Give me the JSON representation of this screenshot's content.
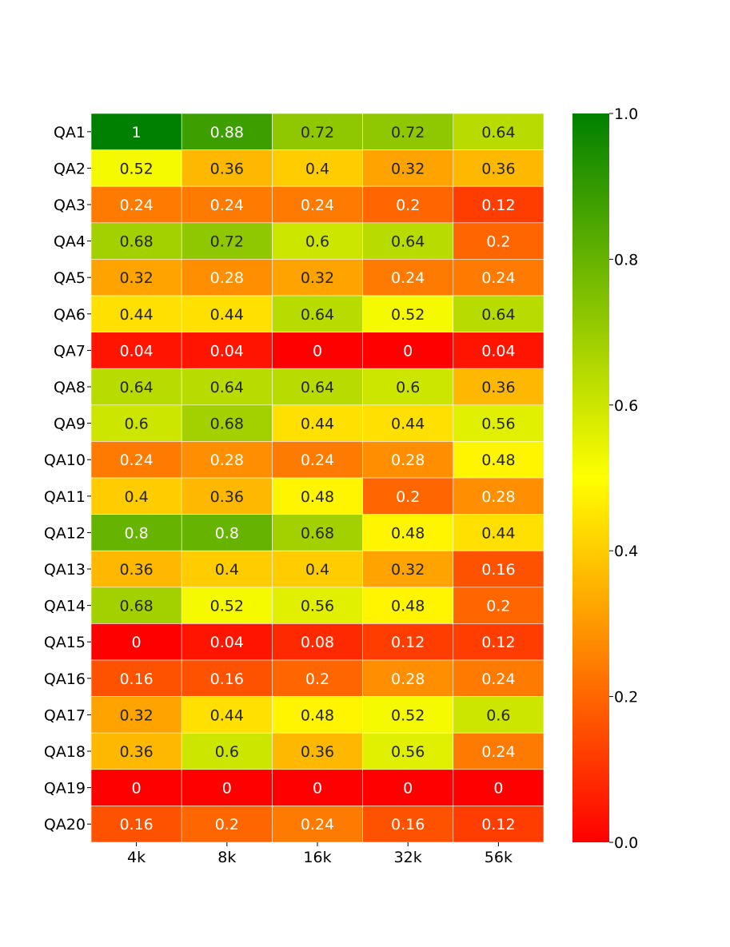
{
  "chart_data": {
    "type": "heatmap",
    "title": "",
    "xlabel": "",
    "ylabel": "",
    "x_categories": [
      "4k",
      "8k",
      "16k",
      "32k",
      "56k"
    ],
    "y_categories": [
      "QA1",
      "QA2",
      "QA3",
      "QA4",
      "QA5",
      "QA6",
      "QA7",
      "QA8",
      "QA9",
      "QA10",
      "QA11",
      "QA12",
      "QA13",
      "QA14",
      "QA15",
      "QA16",
      "QA17",
      "QA18",
      "QA19",
      "QA20"
    ],
    "values": [
      [
        1,
        0.88,
        0.72,
        0.72,
        0.64
      ],
      [
        0.52,
        0.36,
        0.4,
        0.32,
        0.36
      ],
      [
        0.24,
        0.24,
        0.24,
        0.2,
        0.12
      ],
      [
        0.68,
        0.72,
        0.6,
        0.64,
        0.2
      ],
      [
        0.32,
        0.28,
        0.32,
        0.24,
        0.24
      ],
      [
        0.44,
        0.44,
        0.64,
        0.52,
        0.64
      ],
      [
        0.04,
        0.04,
        0,
        0,
        0.04
      ],
      [
        0.64,
        0.64,
        0.64,
        0.6,
        0.36
      ],
      [
        0.6,
        0.68,
        0.44,
        0.44,
        0.56
      ],
      [
        0.24,
        0.28,
        0.24,
        0.28,
        0.48
      ],
      [
        0.4,
        0.36,
        0.48,
        0.2,
        0.28
      ],
      [
        0.8,
        0.8,
        0.68,
        0.48,
        0.44
      ],
      [
        0.36,
        0.4,
        0.4,
        0.32,
        0.16
      ],
      [
        0.68,
        0.52,
        0.56,
        0.48,
        0.2
      ],
      [
        0,
        0.04,
        0.08,
        0.12,
        0.12
      ],
      [
        0.16,
        0.16,
        0.2,
        0.28,
        0.24
      ],
      [
        0.32,
        0.44,
        0.48,
        0.52,
        0.6
      ],
      [
        0.36,
        0.6,
        0.36,
        0.56,
        0.24
      ],
      [
        0,
        0,
        0,
        0,
        0
      ],
      [
        0.16,
        0.2,
        0.24,
        0.16,
        0.12
      ]
    ],
    "value_labels": [
      [
        "1",
        "0.88",
        "0.72",
        "0.72",
        "0.64"
      ],
      [
        "0.52",
        "0.36",
        "0.4",
        "0.32",
        "0.36"
      ],
      [
        "0.24",
        "0.24",
        "0.24",
        "0.2",
        "0.12"
      ],
      [
        "0.68",
        "0.72",
        "0.6",
        "0.64",
        "0.2"
      ],
      [
        "0.32",
        "0.28",
        "0.32",
        "0.24",
        "0.24"
      ],
      [
        "0.44",
        "0.44",
        "0.64",
        "0.52",
        "0.64"
      ],
      [
        "0.04",
        "0.04",
        "0",
        "0",
        "0.04"
      ],
      [
        "0.64",
        "0.64",
        "0.64",
        "0.6",
        "0.36"
      ],
      [
        "0.6",
        "0.68",
        "0.44",
        "0.44",
        "0.56"
      ],
      [
        "0.24",
        "0.28",
        "0.24",
        "0.28",
        "0.48"
      ],
      [
        "0.4",
        "0.36",
        "0.48",
        "0.2",
        "0.28"
      ],
      [
        "0.8",
        "0.8",
        "0.68",
        "0.48",
        "0.44"
      ],
      [
        "0.36",
        "0.4",
        "0.4",
        "0.32",
        "0.16"
      ],
      [
        "0.68",
        "0.52",
        "0.56",
        "0.48",
        "0.2"
      ],
      [
        "0",
        "0.04",
        "0.08",
        "0.12",
        "0.12"
      ],
      [
        "0.16",
        "0.16",
        "0.2",
        "0.28",
        "0.24"
      ],
      [
        "0.32",
        "0.44",
        "0.48",
        "0.52",
        "0.6"
      ],
      [
        "0.36",
        "0.6",
        "0.36",
        "0.56",
        "0.24"
      ],
      [
        "0",
        "0",
        "0",
        "0",
        "0"
      ],
      [
        "0.16",
        "0.2",
        "0.24",
        "0.16",
        "0.12"
      ]
    ],
    "vmin": 0,
    "vmax": 1,
    "colormap": [
      "#ff0000",
      "#ffff00",
      "#008000"
    ],
    "colorbar": {
      "ticks": [
        0,
        0.2,
        0.4,
        0.6,
        0.8,
        1
      ],
      "tick_labels": [
        "0.0",
        "0.2",
        "0.4",
        "0.6",
        "0.8",
        "1.0"
      ],
      "placement": "right"
    },
    "grid": true,
    "legend": "colorbar-right"
  }
}
